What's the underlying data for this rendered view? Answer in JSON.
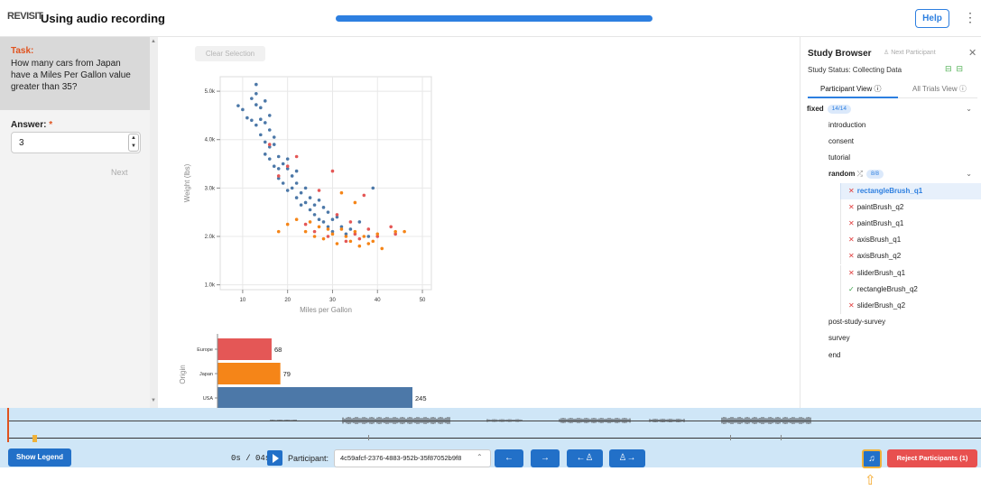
{
  "header": {
    "logo_text": "REVISIT",
    "title": "Using audio recording",
    "progress": 1.0,
    "help_label": "Help",
    "menu_icon": "kebab-vertical-icon"
  },
  "task": {
    "label": "Task:",
    "text": "How many cars from Japan have a Miles Per Gallon value greater than 35?",
    "answer_label": "Answer:",
    "required_mark": "*",
    "answer_value": "3",
    "next_label": "Next"
  },
  "chart_controls": {
    "clear_label": "Clear Selection"
  },
  "chart_data": [
    {
      "type": "scatter",
      "xlabel": "Miles per Gallon",
      "ylabel": "Weight (lbs)",
      "x_ticks": [
        "10",
        "20",
        "30",
        "40",
        "50"
      ],
      "y_ticks": [
        "1.0k",
        "2.0k",
        "3.0k",
        "4.0k",
        "5.0k"
      ],
      "xlim": [
        5,
        52
      ],
      "ylim": [
        900,
        5300
      ],
      "grid": true,
      "series": [
        {
          "name": "USA",
          "color": "#4c78a8",
          "points": [
            [
              9,
              4700
            ],
            [
              10,
              4620
            ],
            [
              11,
              4450
            ],
            [
              12,
              4400
            ],
            [
              13,
              5140
            ],
            [
              13,
              4950
            ],
            [
              13,
              4720
            ],
            [
              13,
              4300
            ],
            [
              14,
              4660
            ],
            [
              14,
              4420
            ],
            [
              14,
              4100
            ],
            [
              15,
              4350
            ],
            [
              15,
              3950
            ],
            [
              15,
              3700
            ],
            [
              16,
              4200
            ],
            [
              16,
              3850
            ],
            [
              16,
              3600
            ],
            [
              17,
              3900
            ],
            [
              17,
              3450
            ],
            [
              18,
              3650
            ],
            [
              18,
              3400
            ],
            [
              18,
              3200
            ],
            [
              19,
              3500
            ],
            [
              19,
              3100
            ],
            [
              20,
              3400
            ],
            [
              20,
              2950
            ],
            [
              21,
              3250
            ],
            [
              21,
              3000
            ],
            [
              22,
              3100
            ],
            [
              22,
              2800
            ],
            [
              23,
              2900
            ],
            [
              23,
              2650
            ],
            [
              24,
              3000
            ],
            [
              24,
              2700
            ],
            [
              25,
              2800
            ],
            [
              25,
              2550
            ],
            [
              26,
              2650
            ],
            [
              26,
              2450
            ],
            [
              27,
              2750
            ],
            [
              27,
              2350
            ],
            [
              28,
              2600
            ],
            [
              28,
              2300
            ],
            [
              29,
              2500
            ],
            [
              29,
              2200
            ],
            [
              30,
              2350
            ],
            [
              30,
              2100
            ],
            [
              31,
              2400
            ],
            [
              32,
              2200
            ],
            [
              33,
              2050
            ],
            [
              34,
              2150
            ],
            [
              36,
              2300
            ],
            [
              38,
              2000
            ],
            [
              39,
              3000
            ],
            [
              17,
              4050
            ],
            [
              16,
              4500
            ],
            [
              15,
              4800
            ],
            [
              12,
              4850
            ],
            [
              20,
              3600
            ],
            [
              22,
              3350
            ]
          ]
        },
        {
          "name": "Europe",
          "color": "#e45756",
          "points": [
            [
              16,
              3900
            ],
            [
              18,
              3250
            ],
            [
              20,
              3450
            ],
            [
              22,
              3650
            ],
            [
              24,
              2250
            ],
            [
              26,
              2100
            ],
            [
              27,
              2950
            ],
            [
              29,
              2000
            ],
            [
              31,
              2450
            ],
            [
              33,
              1900
            ],
            [
              35,
              2050
            ],
            [
              36,
              1950
            ],
            [
              38,
              2150
            ],
            [
              40,
              2000
            ],
            [
              43,
              2200
            ],
            [
              44,
              2050
            ],
            [
              30,
              3350
            ],
            [
              37,
              2850
            ],
            [
              34,
              2300
            ]
          ]
        },
        {
          "name": "Japan",
          "color": "#f58518",
          "points": [
            [
              18,
              2100
            ],
            [
              20,
              2250
            ],
            [
              22,
              2350
            ],
            [
              24,
              2100
            ],
            [
              25,
              2300
            ],
            [
              26,
              2000
            ],
            [
              27,
              2200
            ],
            [
              28,
              1950
            ],
            [
              29,
              2150
            ],
            [
              30,
              2050
            ],
            [
              31,
              1850
            ],
            [
              32,
              2150
            ],
            [
              33,
              2000
            ],
            [
              34,
              1900
            ],
            [
              35,
              2100
            ],
            [
              36,
              1800
            ],
            [
              37,
              2000
            ],
            [
              38,
              1850
            ],
            [
              39,
              1900
            ],
            [
              40,
              2050
            ],
            [
              41,
              1750
            ],
            [
              44,
              2100
            ],
            [
              46,
              2100
            ],
            [
              32,
              2900
            ],
            [
              35,
              2700
            ]
          ]
        }
      ]
    },
    {
      "type": "bar",
      "ylabel": "Origin",
      "categories": [
        "Europe",
        "Japan",
        "USA"
      ],
      "values": [
        68,
        79,
        245
      ],
      "colors": [
        "#e45756",
        "#f58518",
        "#4c78a8"
      ],
      "xlim": [
        0,
        245
      ]
    }
  ],
  "study_browser": {
    "title": "Study Browser",
    "next_participant_label": "Next Participant",
    "status": "Study Status: Collecting Data",
    "tabs": [
      "Participant View",
      "All Trials View"
    ],
    "fixed_label": "fixed",
    "fixed_count": "14/14",
    "items_top": [
      "introduction",
      "consent",
      "tutorial"
    ],
    "random_label": "random",
    "random_count": "8/8",
    "random_items": [
      {
        "label": "rectangleBrush_q1",
        "status": "x",
        "selected": true
      },
      {
        "label": "paintBrush_q2",
        "status": "x",
        "selected": false
      },
      {
        "label": "paintBrush_q1",
        "status": "x",
        "selected": false
      },
      {
        "label": "axisBrush_q1",
        "status": "x",
        "selected": false
      },
      {
        "label": "axisBrush_q2",
        "status": "x",
        "selected": false
      },
      {
        "label": "sliderBrush_q1",
        "status": "x",
        "selected": false
      },
      {
        "label": "rectangleBrush_q2",
        "status": "check",
        "selected": false
      },
      {
        "label": "sliderBrush_q2",
        "status": "x",
        "selected": false
      }
    ],
    "items_bottom": [
      "post-study-survey",
      "survey",
      "end"
    ]
  },
  "playback": {
    "show_legend_label": "Show Legend",
    "time": "0s / 04s",
    "participant_label": "Participant:",
    "participant_id": "4c59afcf-2376-4883-952b-35f87052b9f8",
    "reject_label": "Reject Participants (1)",
    "nav_icons": [
      "arrow-left-icon",
      "arrow-right-icon",
      "previous-participant-icon",
      "next-participant-icon"
    ],
    "recording_icon": "audio-download-icon"
  }
}
